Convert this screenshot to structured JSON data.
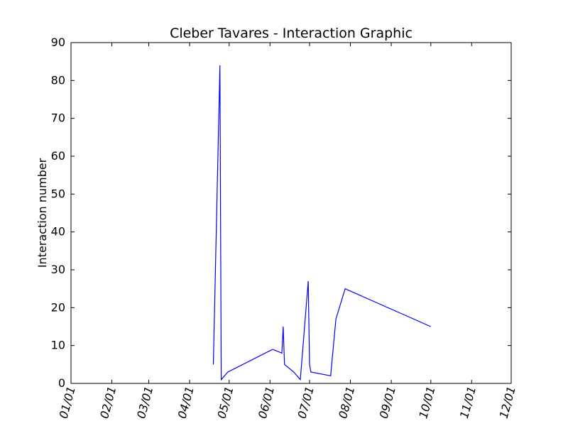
{
  "chart_data": {
    "type": "line",
    "title": "Cleber Tavares - Interaction Graphic",
    "xlabel": "",
    "ylabel": "Interaction number",
    "x_tick_labels": [
      "01/01",
      "02/01",
      "03/01",
      "04/01",
      "05/01",
      "06/01",
      "07/01",
      "08/01",
      "09/01",
      "10/01",
      "11/01",
      "12/01"
    ],
    "x_ticks": [
      "01-01",
      "02-01",
      "03-01",
      "04-01",
      "05-01",
      "06-01",
      "07-01",
      "08-01",
      "09-01",
      "10-01",
      "11-01",
      "12-01"
    ],
    "xlim": [
      "01-01",
      "12-01"
    ],
    "y_tick_labels": [
      "0",
      "10",
      "20",
      "30",
      "40",
      "50",
      "60",
      "70",
      "80",
      "90"
    ],
    "y_ticks": [
      0,
      10,
      20,
      30,
      40,
      50,
      60,
      70,
      80,
      90
    ],
    "ylim": [
      0,
      90
    ],
    "grid": false,
    "line_color": "#0000ff",
    "series": [
      {
        "x": [
          "04-19",
          "04-24",
          "04-25",
          "04-30",
          "06-03",
          "06-10",
          "06-11",
          "06-12",
          "06-19",
          "06-24",
          "06-30",
          "07-01",
          "07-02",
          "07-17",
          "07-21",
          "07-28",
          "10-01"
        ],
        "y": [
          5,
          84,
          1,
          3,
          9,
          8,
          15,
          5,
          3,
          1,
          27,
          5,
          3,
          2,
          17,
          25,
          15
        ]
      }
    ]
  }
}
